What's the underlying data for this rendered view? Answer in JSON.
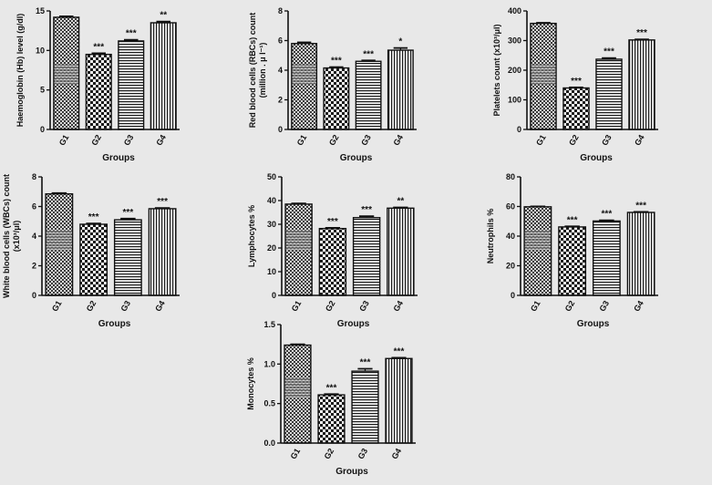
{
  "chart_data": [
    {
      "type": "bar",
      "ylabel_lines": [
        "Haemoglobin (Hb) level (g/dl)"
      ],
      "xlabel": "Groups",
      "categories": [
        "G1",
        "G2",
        "G3",
        "G4"
      ],
      "values": [
        14.2,
        9.5,
        11.2,
        13.5
      ],
      "errors": [
        0.12,
        0.15,
        0.15,
        0.15
      ],
      "significance": [
        "",
        "***",
        "***",
        "**"
      ],
      "ylim": [
        0,
        15
      ],
      "yticks": [
        0,
        5,
        10,
        15
      ],
      "ytick_labels": [
        "0",
        "5",
        "10",
        "15"
      ]
    },
    {
      "type": "bar",
      "ylabel_lines": [
        "Red blood cells (RBCs) count",
        "(million . μ l⁻¹)"
      ],
      "xlabel": "Groups",
      "categories": [
        "G1",
        "G2",
        "G3",
        "G4"
      ],
      "values": [
        5.8,
        4.15,
        4.6,
        5.35
      ],
      "errors": [
        0.08,
        0.06,
        0.06,
        0.15
      ],
      "significance": [
        "",
        "***",
        "***",
        "*"
      ],
      "ylim": [
        0,
        8
      ],
      "yticks": [
        0,
        2,
        4,
        6,
        8
      ],
      "ytick_labels": [
        "0",
        "2",
        "4",
        "6",
        "8"
      ]
    },
    {
      "type": "bar",
      "ylabel_lines": [
        "Platelets count (x10³/μl)"
      ],
      "xlabel": "Groups",
      "categories": [
        "G1",
        "G2",
        "G3",
        "G4"
      ],
      "values": [
        358,
        140,
        237,
        302
      ],
      "errors": [
        2,
        2,
        4,
        2
      ],
      "significance": [
        "",
        "***",
        "***",
        "***"
      ],
      "ylim": [
        0,
        400
      ],
      "yticks": [
        0,
        100,
        200,
        300,
        400
      ],
      "ytick_labels": [
        "0",
        "100",
        "200",
        "300",
        "400"
      ]
    },
    {
      "type": "bar",
      "ylabel_lines": [
        "White blood cells (WBCs) count",
        "(x10³/μl)"
      ],
      "xlabel": "Groups",
      "categories": [
        "G1",
        "G2",
        "G3",
        "G4"
      ],
      "values": [
        6.85,
        4.8,
        5.1,
        5.85
      ],
      "errors": [
        0.06,
        0.05,
        0.08,
        0.05
      ],
      "significance": [
        "",
        "***",
        "***",
        "***"
      ],
      "ylim": [
        0,
        8
      ],
      "yticks": [
        0,
        2,
        4,
        6,
        8
      ],
      "ytick_labels": [
        "0",
        "2",
        "4",
        "6",
        "8"
      ]
    },
    {
      "type": "bar",
      "ylabel_lines": [
        "Lymphocytes %"
      ],
      "xlabel": "Groups",
      "categories": [
        "G1",
        "G2",
        "G3",
        "G4"
      ],
      "values": [
        38.5,
        28.2,
        32.8,
        36.8
      ],
      "errors": [
        0.3,
        0.3,
        0.6,
        0.3
      ],
      "significance": [
        "",
        "***",
        "***",
        "**"
      ],
      "ylim": [
        0,
        50
      ],
      "yticks": [
        0,
        10,
        20,
        30,
        40,
        50
      ],
      "ytick_labels": [
        "0",
        "10",
        "20",
        "30",
        "40",
        "50"
      ]
    },
    {
      "type": "bar",
      "ylabel_lines": [
        "Neutrophils %"
      ],
      "xlabel": "Groups",
      "categories": [
        "G1",
        "G2",
        "G3",
        "G4"
      ],
      "values": [
        59.8,
        46.2,
        50.2,
        56.0
      ],
      "errors": [
        0.3,
        0.4,
        0.5,
        0.4
      ],
      "significance": [
        "",
        "***",
        "***",
        "***"
      ],
      "ylim": [
        0,
        80
      ],
      "yticks": [
        0,
        20,
        40,
        60,
        80
      ],
      "ytick_labels": [
        "0",
        "20",
        "40",
        "60",
        "80"
      ]
    },
    {
      "type": "bar",
      "ylabel_lines": [
        "Monocytes %"
      ],
      "xlabel": "Groups",
      "categories": [
        "G1",
        "G2",
        "G3",
        "G4"
      ],
      "values": [
        1.24,
        0.61,
        0.91,
        1.07
      ],
      "errors": [
        0.01,
        0.01,
        0.03,
        0.01
      ],
      "significance": [
        "",
        "***",
        "***",
        "***"
      ],
      "ylim": [
        0,
        1.5
      ],
      "yticks": [
        0,
        0.5,
        1.0,
        1.5
      ],
      "ytick_labels": [
        "0.0",
        "0.5",
        "1.0",
        "1.5"
      ]
    }
  ]
}
